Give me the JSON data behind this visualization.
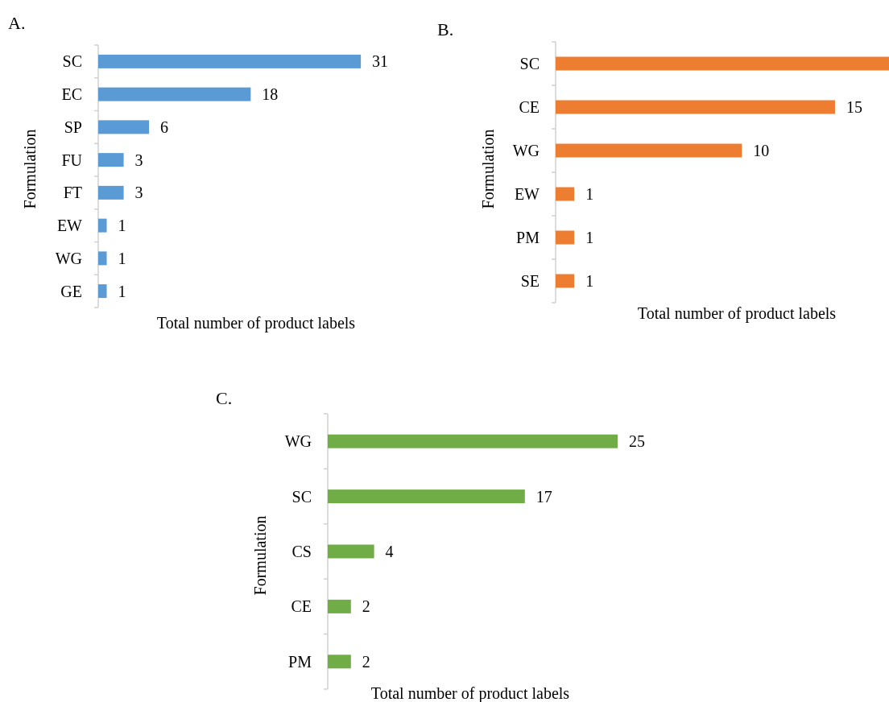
{
  "chart_data": [
    {
      "type": "bar",
      "orientation": "horizontal",
      "title": "A.",
      "xlabel": "Total number of product labels",
      "ylabel": "Formulation",
      "categories": [
        "SC",
        "EC",
        "SP",
        "FU",
        "FT",
        "EW",
        "WG",
        "GE"
      ],
      "values": [
        31,
        18,
        6,
        3,
        3,
        1,
        1,
        1
      ],
      "color": "#5b9bd5",
      "data_labels": true
    },
    {
      "type": "bar",
      "orientation": "horizontal",
      "title": "B.",
      "xlabel": "Total number of product labels",
      "ylabel": "Formulation",
      "categories": [
        "SC",
        "CE",
        "WG",
        "EW",
        "PM",
        "SE"
      ],
      "values": [
        18,
        15,
        10,
        1,
        1,
        1
      ],
      "value_labels": [
        null,
        "15",
        "10",
        "1",
        "1",
        "1"
      ],
      "color": "#ed7d31"
    },
    {
      "type": "bar",
      "orientation": "horizontal",
      "title": "C.",
      "xlabel": "Total number of product labels",
      "ylabel": "Formulation",
      "categories": [
        "WG",
        "SC",
        "CS",
        "CE",
        "PM"
      ],
      "values": [
        25,
        17,
        4,
        2,
        2
      ],
      "color": "#70ad47",
      "data_labels": true
    }
  ]
}
